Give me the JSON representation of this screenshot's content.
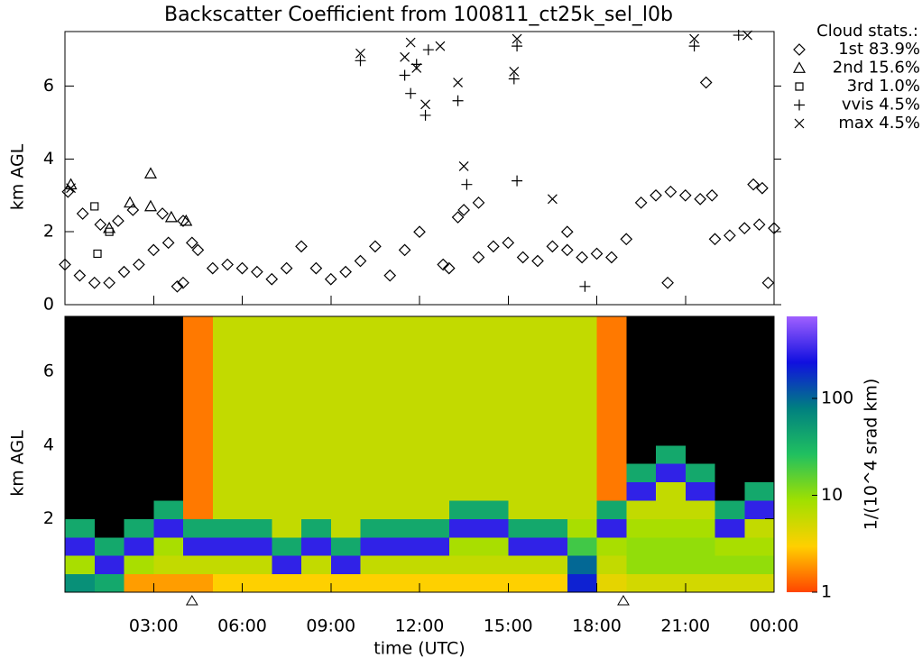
{
  "chart_data": [
    {
      "type": "scatter",
      "title": "Backscatter Coefficient from 100811_ct25k_sel_l0b",
      "ylabel": "km AGL",
      "xlim": [
        0,
        24
      ],
      "ylim": [
        0,
        7.5
      ],
      "yticks": [
        0,
        2,
        4,
        6
      ],
      "legend_title": "Cloud stats.:",
      "legend": "right-outside",
      "series": [
        {
          "name": "1st 83.9%",
          "marker": "diamond",
          "color": "#000000",
          "x": [
            0,
            0.5,
            1,
            1.5,
            2,
            2.5,
            3,
            3.5,
            3.8,
            4,
            4.3,
            4.5,
            5,
            5.5,
            6,
            6.5,
            7,
            7.5,
            8,
            8.5,
            9,
            9.5,
            10,
            10.5,
            11,
            11.5,
            12,
            12.8,
            13,
            13.5,
            14,
            14.5,
            15,
            15.5,
            16,
            16.5,
            17,
            17.5,
            18,
            18.5,
            19,
            19.5,
            20,
            20.5,
            21,
            21.5,
            21.7,
            22,
            22.5,
            23,
            23.5,
            24,
            0.1,
            0.6,
            1.2,
            1.8,
            2.3,
            3.3,
            4,
            13.3,
            14,
            17,
            21.9,
            23.3,
            23.6,
            20.4,
            23.8
          ],
          "y": [
            1.1,
            0.8,
            0.6,
            0.6,
            0.9,
            1.1,
            1.5,
            1.7,
            0.5,
            0.6,
            1.7,
            1.5,
            1,
            1.1,
            1,
            0.9,
            0.7,
            1,
            1.6,
            1,
            0.7,
            0.9,
            1.2,
            1.6,
            0.8,
            1.5,
            2,
            1.1,
            1,
            2.6,
            1.3,
            1.6,
            1.7,
            1.3,
            1.2,
            1.6,
            1.5,
            1.3,
            1.4,
            1.3,
            1.8,
            2.8,
            3,
            3.1,
            3,
            2.9,
            6.1,
            1.8,
            1.9,
            2.1,
            2.2,
            2.1,
            3.1,
            2.5,
            2.2,
            2.3,
            2.6,
            2.5,
            2.3,
            2.4,
            2.8,
            2,
            3,
            3.3,
            3.2,
            0.6,
            0.6
          ]
        },
        {
          "name": "2nd 15.6%",
          "marker": "triangle",
          "color": "#000000",
          "x": [
            0.2,
            1.5,
            2.2,
            2.9,
            2.9,
            3.6,
            4.1
          ],
          "y": [
            3.3,
            2.1,
            2.8,
            2.7,
            3.6,
            2.4,
            2.3
          ]
        },
        {
          "name": "3rd 1.0%",
          "marker": "square",
          "color": "#000000",
          "x": [
            1.1,
            1.5,
            1.0
          ],
          "y": [
            1.4,
            2.0,
            2.7
          ]
        },
        {
          "name": "vvis 4.5%",
          "marker": "plus",
          "color": "#000000",
          "x": [
            10,
            11.5,
            11.7,
            11.9,
            12.2,
            12.3,
            13.3,
            13.6,
            15.2,
            15.3,
            15.3,
            21.3,
            22.8,
            17.6
          ],
          "y": [
            6.7,
            6.3,
            5.8,
            6.6,
            5.2,
            7,
            5.6,
            3.3,
            6.2,
            7.1,
            3.4,
            7.1,
            7.4,
            0.5
          ]
        },
        {
          "name": "max 4.5%",
          "marker": "cross",
          "color": "#000000",
          "x": [
            10,
            11.7,
            11.9,
            12.2,
            12.7,
            13.3,
            13.5,
            15.2,
            15.3,
            16.5,
            21.3,
            23.1,
            0.2,
            11.5
          ],
          "y": [
            6.9,
            7.2,
            6.5,
            5.5,
            7.1,
            6.1,
            3.8,
            6.4,
            7.3,
            2.9,
            7.3,
            7.4,
            3.2,
            6.8
          ]
        }
      ]
    },
    {
      "type": "heatmap",
      "ylabel": "km AGL",
      "xlabel": "time (UTC)",
      "xlim": [
        0,
        24
      ],
      "ylim": [
        0,
        7.5
      ],
      "xticks": [
        {
          "value": 3,
          "label": "03:00"
        },
        {
          "value": 6,
          "label": "06:00"
        },
        {
          "value": 9,
          "label": "09:00"
        },
        {
          "value": 12,
          "label": "12:00"
        },
        {
          "value": 15,
          "label": "15:00"
        },
        {
          "value": 18,
          "label": "18:00"
        },
        {
          "value": 21,
          "label": "21:00"
        },
        {
          "value": 24,
          "label": "00:00"
        }
      ],
      "yticks": [
        2,
        4,
        6
      ],
      "markers_x": [
        4.3,
        18.9
      ],
      "xbins": [
        0,
        1,
        2,
        3,
        4,
        5,
        6,
        7,
        8,
        9,
        10,
        11,
        12,
        13,
        14,
        15,
        16,
        17,
        18,
        19,
        20,
        21,
        22,
        23,
        24
      ],
      "ybins": [
        0,
        0.5,
        1,
        1.5,
        2,
        2.5,
        3,
        3.5,
        4,
        4.5,
        5,
        5.5,
        6,
        6.5,
        7,
        7.5
      ],
      "values": [
        [
          60,
          8,
          300,
          40,
          0.3,
          0.3,
          0.3,
          0.3,
          0.3,
          0.3,
          0.3,
          0.3,
          0.3,
          0.3,
          0.3
        ],
        [
          40,
          300,
          40,
          0.3,
          0.3,
          0.3,
          0.3,
          0.3,
          0.3,
          0.3,
          0.3,
          0.3,
          0.3,
          0.3,
          0.3
        ],
        [
          2,
          8,
          300,
          40,
          0.3,
          0.3,
          0.3,
          0.3,
          0.3,
          0.3,
          0.3,
          0.3,
          0.3,
          0.3,
          0.3
        ],
        [
          2,
          6,
          8,
          300,
          40,
          0.3,
          0.3,
          0.3,
          0.3,
          0.3,
          0.3,
          0.3,
          0.3,
          0.3,
          0.3
        ],
        [
          2,
          6,
          300,
          40,
          1.5,
          1.5,
          1.5,
          1.5,
          1.5,
          1.5,
          1.5,
          1.5,
          1.5,
          1.5,
          1.5
        ],
        [
          3,
          6,
          300,
          40,
          6,
          6,
          6,
          6,
          6,
          6,
          6,
          6,
          6,
          6,
          6
        ],
        [
          3,
          6,
          300,
          40,
          6,
          6,
          6,
          6,
          6,
          6,
          6,
          6,
          6,
          6,
          6
        ],
        [
          3,
          300,
          40,
          6,
          6,
          6,
          6,
          6,
          6,
          6,
          6,
          6,
          6,
          6,
          6
        ],
        [
          3,
          6,
          300,
          40,
          6,
          6,
          6,
          6,
          6,
          6,
          6,
          6,
          6,
          6,
          6
        ],
        [
          3,
          300,
          40,
          6,
          6,
          6,
          6,
          6,
          6,
          6,
          6,
          6,
          6,
          6,
          6
        ],
        [
          3,
          6,
          300,
          40,
          6,
          6,
          6,
          6,
          6,
          6,
          6,
          6,
          6,
          6,
          6
        ],
        [
          3,
          6,
          300,
          40,
          6,
          6,
          6,
          6,
          6,
          6,
          6,
          6,
          6,
          6,
          6
        ],
        [
          3,
          6,
          300,
          40,
          6,
          6,
          6,
          6,
          6,
          6,
          6,
          6,
          6,
          6,
          6
        ],
        [
          3,
          6,
          8,
          300,
          40,
          6,
          6,
          6,
          6,
          6,
          6,
          6,
          6,
          6,
          6
        ],
        [
          3,
          6,
          8,
          300,
          40,
          6,
          6,
          6,
          6,
          6,
          6,
          6,
          6,
          6,
          6
        ],
        [
          3,
          6,
          300,
          40,
          6,
          6,
          6,
          6,
          6,
          6,
          6,
          6,
          6,
          6,
          6
        ],
        [
          3,
          6,
          300,
          40,
          6,
          6,
          6,
          6,
          6,
          6,
          6,
          6,
          6,
          6,
          6
        ],
        [
          200,
          100,
          20,
          8,
          6,
          6,
          6,
          6,
          6,
          6,
          6,
          6,
          6,
          6,
          6
        ],
        [
          4,
          6,
          8,
          300,
          40,
          1.5,
          1.5,
          1.5,
          1.5,
          1.5,
          1.5,
          1.5,
          1.5,
          1.5,
          1.5
        ],
        [
          5,
          10,
          10,
          8,
          6,
          300,
          40,
          0.3,
          0.3,
          0.3,
          0.3,
          0.3,
          0.3,
          0.3,
          0.3
        ],
        [
          5,
          10,
          10,
          8,
          6,
          6,
          300,
          40,
          0.3,
          0.3,
          0.3,
          0.3,
          0.3,
          0.3,
          0.3
        ],
        [
          5,
          10,
          10,
          8,
          6,
          300,
          40,
          0.3,
          0.3,
          0.3,
          0.3,
          0.3,
          0.3,
          0.3,
          0.3
        ],
        [
          5,
          10,
          8,
          300,
          40,
          0.3,
          0.3,
          0.3,
          0.3,
          0.3,
          0.3,
          0.3,
          0.3,
          0.3,
          0.3
        ],
        [
          5,
          10,
          8,
          6,
          300,
          40,
          0.3,
          0.3,
          0.3,
          0.3,
          0.3,
          0.3,
          0.3,
          0.3,
          0.3
        ]
      ],
      "colorbar": {
        "label": "1/(10^4 srad km)",
        "clim": [
          1,
          700
        ],
        "ticks": [
          1,
          10,
          100
        ],
        "log": true,
        "colorscale": [
          "#ff4500",
          "#ffd000",
          "#a0e000",
          "#20c060",
          "#008080",
          "#1010e0",
          "#a060ff"
        ],
        "under_color": "#000000"
      }
    }
  ]
}
